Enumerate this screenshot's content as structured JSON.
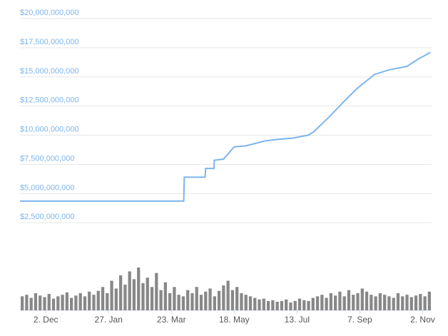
{
  "chart_data": {
    "type": "line",
    "series": [
      {
        "color": "#7cb5ec",
        "x": [
          -23,
          123,
          123.5,
          142,
          142.6,
          150,
          150.2,
          158.5,
          168,
          179,
          195,
          207.5,
          220,
          234,
          239,
          252,
          265,
          277.5,
          293,
          306,
          322,
          331.6,
          343
        ],
        "values": [
          4350000000,
          4350000000,
          6400000000,
          6400000000,
          7150000000,
          7150000000,
          7850000000,
          7950000000,
          9000000000,
          9100000000,
          9500000000,
          9650000000,
          9750000000,
          10000000000,
          10300000000,
          11500000000,
          12800000000,
          14000000000,
          15200000000,
          15600000000,
          15900000000,
          16500000000,
          17100000000
        ]
      }
    ],
    "volume": {
      "color": "#888888",
      "values": [
        18,
        20,
        16,
        22,
        19,
        17,
        21,
        15,
        18,
        20,
        23,
        16,
        19,
        22,
        18,
        24,
        20,
        25,
        30,
        22,
        38,
        28,
        45,
        33,
        50,
        40,
        55,
        35,
        42,
        30,
        48,
        26,
        36,
        22,
        30,
        20,
        18,
        26,
        22,
        30,
        20,
        24,
        28,
        18,
        25,
        32,
        38,
        26,
        30,
        22,
        20,
        18,
        16,
        14,
        15,
        12,
        13,
        11,
        12,
        14,
        10,
        12,
        15,
        13,
        12,
        16,
        18,
        20,
        16,
        22,
        19,
        24,
        18,
        26,
        20,
        22,
        28,
        24,
        20,
        18,
        22,
        20,
        18,
        16,
        22,
        18,
        20,
        17,
        19,
        21,
        18,
        24
      ]
    },
    "xlim": [
      -23,
      344
    ],
    "xticks": [
      {
        "value": 0,
        "label": "2. Dec"
      },
      {
        "value": 56,
        "label": "27. Jan"
      },
      {
        "value": 112,
        "label": "23. Mar"
      },
      {
        "value": 168,
        "label": "18. May"
      },
      {
        "value": 224,
        "label": "13. Jul"
      },
      {
        "value": 280,
        "label": "7. Sep"
      },
      {
        "value": 336,
        "label": "2. Nov"
      }
    ],
    "ylim": [
      0,
      20000000000
    ],
    "yticks": [
      {
        "value": 2500000000,
        "label": "$2,500,000,000"
      },
      {
        "value": 5000000000,
        "label": "$5,000,000,000"
      },
      {
        "value": 7500000000,
        "label": "$7,500,000,000"
      },
      {
        "value": 10000000000,
        "label": "$10,000,000,000"
      },
      {
        "value": 12500000000,
        "label": "$12,500,000,000"
      },
      {
        "value": 15000000000,
        "label": "$15,000,000,000"
      },
      {
        "value": 17500000000,
        "label": "$17,500,000,000"
      },
      {
        "value": 20000000000,
        "label": "$20,000,000,000"
      }
    ],
    "grid": true
  }
}
